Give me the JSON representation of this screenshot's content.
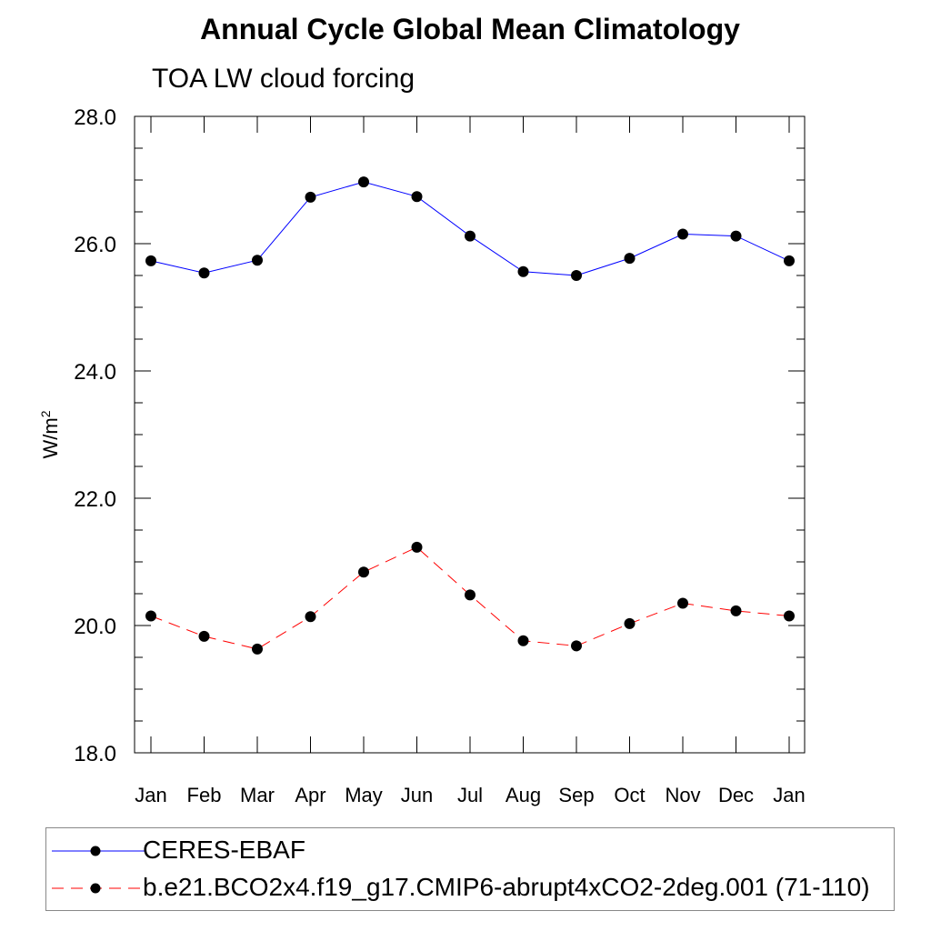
{
  "chart_data": {
    "type": "line",
    "title": "Annual Cycle Global Mean Climatology",
    "subtitle": "TOA LW cloud forcing",
    "ylabel_base": "W/m",
    "ylabel_sup": "2",
    "xlabel": "",
    "categories": [
      "Jan",
      "Feb",
      "Mar",
      "Apr",
      "May",
      "Jun",
      "Jul",
      "Aug",
      "Sep",
      "Oct",
      "Nov",
      "Dec",
      "Jan"
    ],
    "ylim": [
      18.0,
      28.0
    ],
    "yticks": [
      "18.0",
      "20.0",
      "22.0",
      "24.0",
      "26.0",
      "28.0"
    ],
    "series": [
      {
        "name": "CERES-EBAF",
        "color": "#0000ff",
        "dash": "solid",
        "values": [
          25.73,
          25.54,
          25.74,
          26.73,
          26.97,
          26.74,
          26.12,
          25.56,
          25.5,
          25.77,
          26.15,
          26.12,
          25.73
        ]
      },
      {
        "name": "b.e21.BCO2x4.f19_g17.CMIP6-abrupt4xCO2-2deg.001 (71-110)",
        "color": "#ff0000",
        "dash": "dashed",
        "values": [
          20.15,
          19.83,
          19.63,
          20.14,
          20.84,
          21.23,
          20.48,
          19.76,
          19.68,
          20.03,
          20.35,
          20.23,
          20.15
        ]
      }
    ]
  }
}
